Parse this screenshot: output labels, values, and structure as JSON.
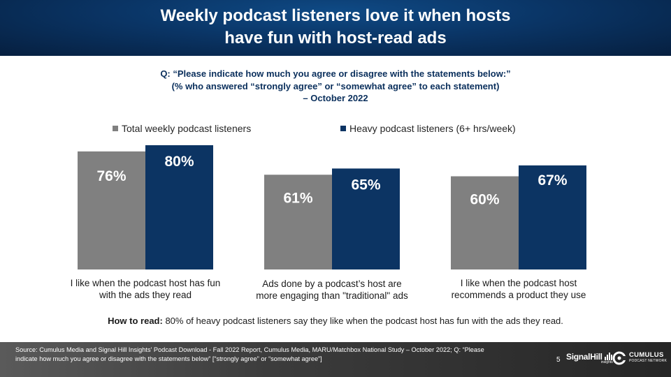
{
  "title": {
    "line1": "Weekly podcast listeners love it when hosts",
    "line2": "have fun with host-read ads"
  },
  "question": {
    "line1": "Q: “Please indicate how much you agree or disagree with the statements below:”",
    "line2": "(% who answered “strongly agree” or “somewhat agree” to each statement)",
    "line3": "– October 2022"
  },
  "colors": {
    "total": "#808080",
    "heavy": "#0c3463",
    "header": "#0a3566"
  },
  "chart_data": {
    "type": "bar",
    "categories": [
      [
        "I like when the podcast host has fun",
        "with the ads they read"
      ],
      [
        "Ads done by a podcast’s host are",
        "more engaging than \"traditional\" ads"
      ],
      [
        "I like when the podcast host",
        "recommends a product they use"
      ]
    ],
    "series": [
      {
        "name": "Total weekly podcast listeners",
        "values": [
          76,
          61,
          60
        ],
        "labels": [
          "76%",
          "61%",
          "60%"
        ]
      },
      {
        "name": "Heavy podcast listeners (6+ hrs/week)",
        "values": [
          80,
          65,
          67
        ],
        "labels": [
          "80%",
          "65%",
          "67%"
        ]
      }
    ],
    "ylim": [
      0,
      80
    ],
    "grid": false,
    "legend": "top"
  },
  "howto": {
    "label": "How to read:",
    "text": " 80% of heavy podcast listeners say they like when the podcast host has fun with the ads they read."
  },
  "footer": {
    "source": "Source: Cumulus Media and Signal Hill Insights' Podcast Download - Fall 2022 Report, Cumulus Media, MARU/Matchbox National Study – October 2022; Q: “Please indicate how much you agree or disagree with the statements below” [“strongly agree” or “somewhat agree”]",
    "page_number": "5",
    "signal_hill": "SignalHill",
    "signal_hill_sub": "insights",
    "cumulus_name": "CUMULUS",
    "cumulus_sub": "PODCAST NETWORK"
  }
}
